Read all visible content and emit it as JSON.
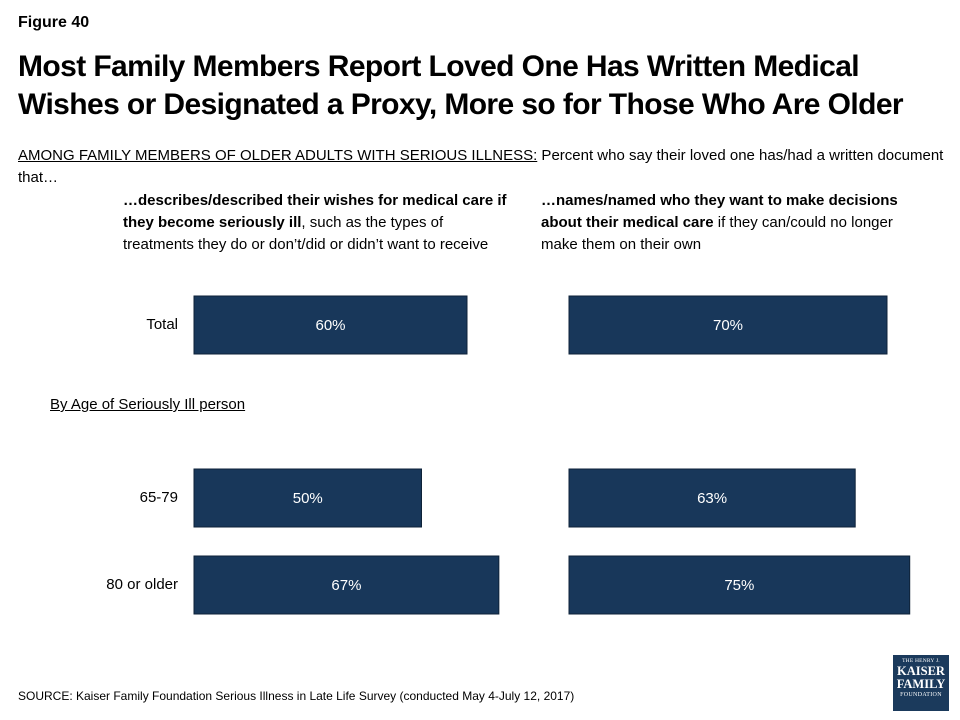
{
  "figure_label": "Figure 40",
  "title": "Most Family Members Report Loved One Has Written Medical Wishes or Designated a Proxy, More so for Those Who Are Older",
  "subtitle": {
    "lead": "AMONG FAMILY MEMBERS OF OLDER ADULTS WITH SERIOUS ILLNESS:",
    "text": " Percent who say their loved one has/had a written document that…"
  },
  "columns": [
    {
      "bold": "…describes/described their wishes for medical care if they become seriously ill",
      "rest": ", such as the types of treatments they do or don’t/did or didn’t want to receive"
    },
    {
      "bold": "…names/named who they want to make decisions about their medical care",
      "rest": " if they can/could no longer make them on their own"
    }
  ],
  "section_label": "By Age of Seriously Ill person",
  "source": "SOURCE: Kaiser Family Foundation Serious Illness in Late Life Survey (conducted May 4-July 12, 2017)",
  "logo": {
    "line1": "THE HENRY J.",
    "line2": "KAISER",
    "line3": "FAMILY",
    "line4": "FOUNDATION"
  },
  "colors": {
    "bar": "#18375a",
    "bar_stroke": "#0e2238",
    "label_text": "#ffffff"
  },
  "chart_data": [
    {
      "type": "bar",
      "orientation": "horizontal",
      "title": "",
      "categories": [
        "Total",
        "65-79",
        "80 or older"
      ],
      "values": [
        60,
        50,
        67
      ],
      "data_labels": [
        "60%",
        "50%",
        "67%"
      ]
    },
    {
      "type": "bar",
      "orientation": "horizontal",
      "title": "",
      "categories": [
        "Total",
        "65-79",
        "80 or older"
      ],
      "values": [
        70,
        63,
        75
      ],
      "data_labels": [
        "70%",
        "63%",
        "75%"
      ]
    }
  ]
}
